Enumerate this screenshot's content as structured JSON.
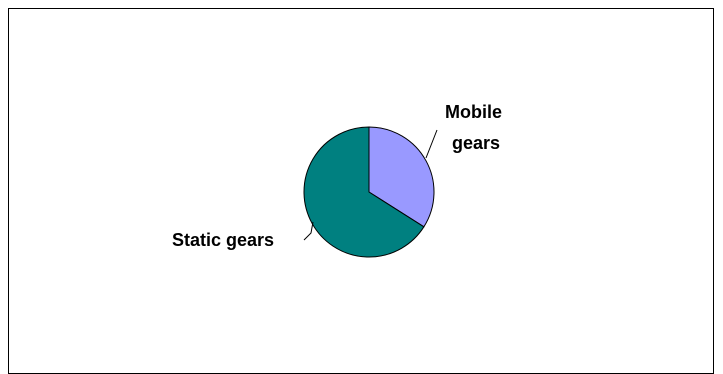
{
  "chart_data": {
    "type": "pie",
    "title": "",
    "slices": [
      {
        "label_lines": [
          "Mobile",
          "gears"
        ],
        "value": 34,
        "color": "#9999ff"
      },
      {
        "label_lines": [
          "Static gears"
        ],
        "value": 66,
        "color": "#008080"
      }
    ]
  }
}
